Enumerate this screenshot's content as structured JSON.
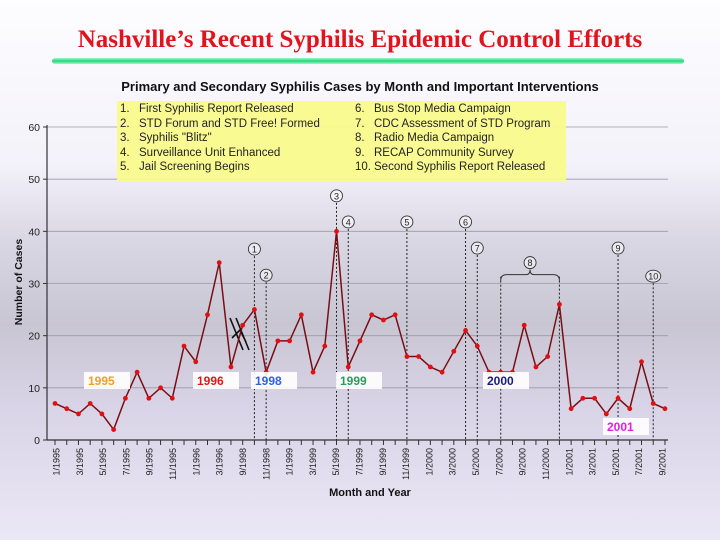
{
  "header": {
    "title": "Nashville’s Recent Syphilis Epidemic Control Efforts"
  },
  "chart_data": {
    "type": "line",
    "title": "Primary and Secondary Syphilis Cases by Month and Important Interventions",
    "xlabel": "Month and Year",
    "ylabel": "Number of Cases",
    "ylim": [
      0,
      60
    ],
    "yticks": [
      "0",
      "10",
      "20",
      "30",
      "40",
      "50",
      "60"
    ],
    "grid": true,
    "xtick_labels": [
      "1/1995",
      "3/1995",
      "5/1995",
      "7/1995",
      "9/1995",
      "11/1995",
      "1/1996",
      "3/1996",
      "9/1998",
      "11/1998",
      "1/1999",
      "3/1999",
      "5/1999",
      "7/1999",
      "9/1999",
      "11/1999",
      "1/2000",
      "3/2000",
      "5/2000",
      "7/2000",
      "9/2000",
      "11/2000",
      "1/2001",
      "3/2001",
      "5/2001",
      "7/2001",
      "9/2001"
    ],
    "values": [
      7,
      6,
      5,
      7,
      5,
      2,
      8,
      13,
      8,
      10,
      8,
      18,
      15,
      24,
      34,
      14,
      22,
      25,
      13,
      19,
      19,
      24,
      13,
      18,
      40,
      14,
      19,
      24,
      23,
      24,
      16,
      16,
      14,
      13,
      17,
      21,
      18,
      13,
      13,
      13,
      22,
      14,
      16,
      26,
      6,
      8,
      8,
      5,
      8,
      6,
      15,
      7,
      6
    ],
    "line_color": "#7a0e14",
    "marker_color": "#e01010",
    "year_labels": [
      {
        "text": "1995",
        "color": "#f0a020"
      },
      {
        "text": "1996",
        "color": "#e01818"
      },
      {
        "text": "1998",
        "color": "#3060e0"
      },
      {
        "text": "1999",
        "color": "#2e9a5e"
      },
      {
        "text": "2000",
        "color": "#1a1a80"
      },
      {
        "text": "2001",
        "color": "#e020e0"
      }
    ],
    "interventions": [
      {
        "n": "1",
        "label": "First Syphilis Report Released",
        "point_index": 17
      },
      {
        "n": "2",
        "label": "STD Forum and STD Free! Formed",
        "point_index": 18
      },
      {
        "n": "3",
        "label": "Syphilis \"Blitz\"",
        "point_index": 24
      },
      {
        "n": "4",
        "label": "Surveillance Unit Enhanced",
        "point_index": 25
      },
      {
        "n": "5",
        "label": "Jail Screening Begins",
        "point_index": 30
      },
      {
        "n": "6",
        "label": "Bus Stop Media Campaign",
        "point_index": 35
      },
      {
        "n": "7",
        "label": "CDC Assessment of STD Program",
        "point_index": 36
      },
      {
        "n": "8",
        "label": "Radio Media Campaign",
        "point_index": [
          38,
          43
        ]
      },
      {
        "n": "9",
        "label": "RECAP Community Survey",
        "point_index": 48
      },
      {
        "n": "10",
        "label": "Second Syphilis Report Released",
        "point_index": 51
      }
    ]
  }
}
